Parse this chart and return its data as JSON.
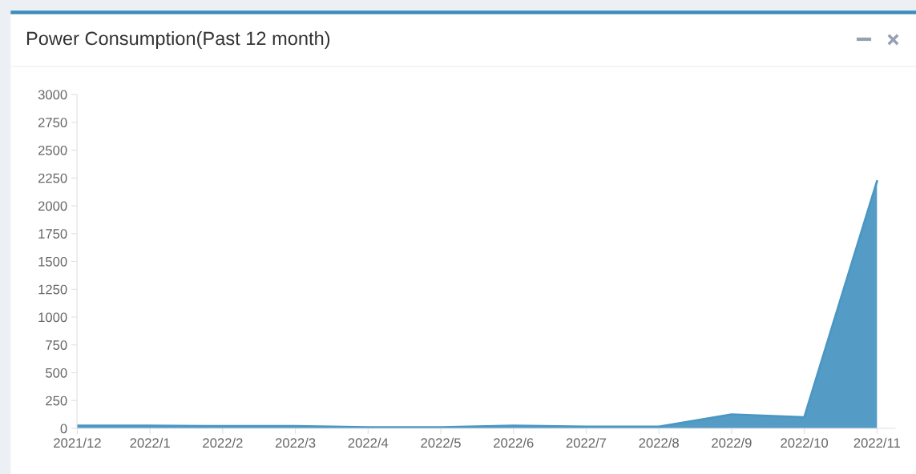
{
  "chart_data": {
    "type": "area",
    "title": "Power Consumption(Past 12 month)",
    "categories": [
      "2021/12",
      "2022/1",
      "2022/2",
      "2022/3",
      "2022/4",
      "2022/5",
      "2022/6",
      "2022/7",
      "2022/8",
      "2022/9",
      "2022/10",
      "2022/11"
    ],
    "series": [
      {
        "color": "#4b97c3",
        "values": [
          25,
          25,
          20,
          20,
          10,
          10,
          25,
          15,
          15,
          125,
          100,
          2220
        ]
      }
    ],
    "ylim": [
      0,
      3000
    ],
    "yticks": [
      0,
      250,
      500,
      750,
      1000,
      1250,
      1500,
      1750,
      2000,
      2250,
      2500,
      2750,
      3000
    ],
    "grid": false,
    "legend": false
  }
}
